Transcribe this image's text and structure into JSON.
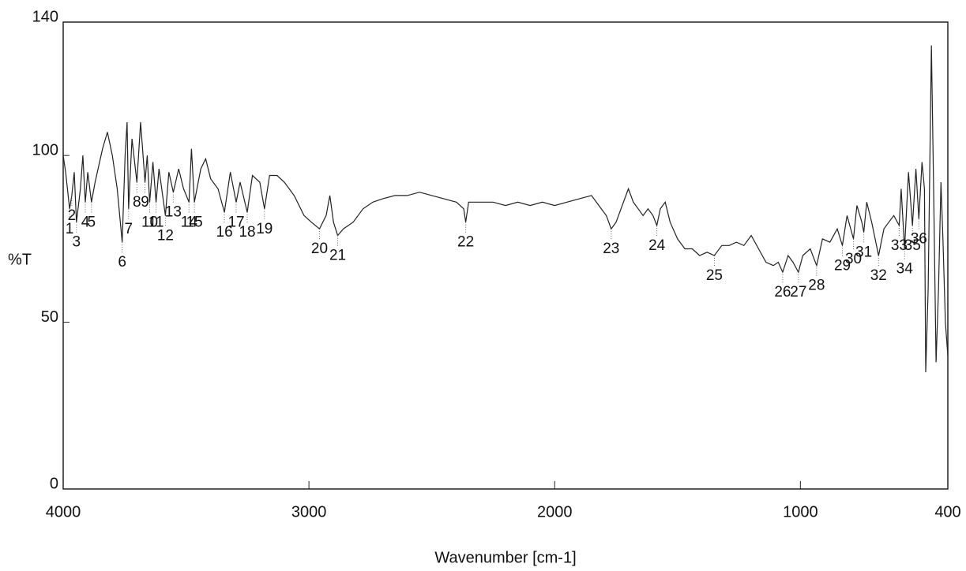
{
  "chart_data": {
    "type": "line",
    "xlabel": "Wavenumber [cm-1]",
    "ylabel": "%T",
    "color": "#222",
    "xlim": [
      4000,
      400
    ],
    "ylim": [
      0,
      140
    ],
    "xticks": [
      4000,
      3000,
      2000,
      1000,
      400
    ],
    "yticks": [
      0,
      50,
      100,
      140
    ],
    "x": [
      4000,
      3990,
      3974,
      3965,
      3955,
      3946,
      3930,
      3920,
      3910,
      3900,
      3885,
      3870,
      3840,
      3820,
      3800,
      3780,
      3760,
      3748,
      3740,
      3734,
      3720,
      3700,
      3685,
      3667,
      3658,
      3648,
      3635,
      3622,
      3610,
      3584,
      3570,
      3552,
      3530,
      3510,
      3488,
      3478,
      3466,
      3440,
      3420,
      3400,
      3370,
      3344,
      3320,
      3296,
      3280,
      3251,
      3230,
      3200,
      3181,
      3160,
      3130,
      3100,
      3060,
      3020,
      2990,
      2957,
      2930,
      2915,
      2900,
      2883,
      2860,
      2820,
      2780,
      2740,
      2700,
      2650,
      2600,
      2550,
      2500,
      2450,
      2400,
      2370,
      2362,
      2350,
      2300,
      2250,
      2200,
      2150,
      2100,
      2050,
      2000,
      1950,
      1900,
      1850,
      1820,
      1790,
      1770,
      1750,
      1720,
      1700,
      1680,
      1660,
      1640,
      1620,
      1600,
      1584,
      1570,
      1550,
      1530,
      1500,
      1470,
      1440,
      1410,
      1380,
      1350,
      1320,
      1290,
      1260,
      1230,
      1200,
      1170,
      1140,
      1110,
      1090,
      1072,
      1050,
      1030,
      1008,
      990,
      960,
      934,
      910,
      880,
      850,
      829,
      810,
      784,
      770,
      750,
      742,
      730,
      710,
      682,
      660,
      640,
      620,
      598,
      590,
      576,
      560,
      544,
      530,
      518,
      505,
      495,
      490,
      480,
      467,
      458,
      448,
      438,
      428,
      420,
      410,
      400
    ],
    "values": [
      100,
      95,
      84,
      88,
      95,
      80,
      90,
      100,
      86,
      95,
      86,
      92,
      102,
      107,
      100,
      90,
      74,
      100,
      110,
      84,
      105,
      92,
      110,
      92,
      100,
      86,
      98,
      86,
      96,
      82,
      95,
      89,
      96,
      90,
      86,
      102,
      86,
      96,
      99,
      93,
      90,
      83,
      95,
      86,
      92,
      83,
      94,
      92,
      84,
      94,
      94,
      92,
      88,
      82,
      80,
      78,
      82,
      88,
      80,
      76,
      78,
      80,
      84,
      86,
      87,
      88,
      88,
      89,
      88,
      87,
      86,
      84,
      80,
      86,
      86,
      86,
      85,
      86,
      85,
      86,
      85,
      86,
      87,
      88,
      85,
      82,
      78,
      80,
      86,
      90,
      86,
      84,
      82,
      84,
      82,
      79,
      84,
      86,
      80,
      75,
      72,
      72,
      70,
      71,
      70,
      73,
      73,
      74,
      73,
      76,
      72,
      68,
      67,
      68,
      65,
      70,
      68,
      65,
      70,
      72,
      67,
      75,
      74,
      78,
      73,
      82,
      75,
      85,
      80,
      77,
      86,
      80,
      70,
      78,
      80,
      82,
      79,
      90,
      72,
      95,
      79,
      96,
      81,
      98,
      90,
      35,
      60,
      133,
      90,
      38,
      60,
      92,
      75,
      50,
      40
    ],
    "peaks": [
      {
        "label": "1",
        "x": 3974,
        "y": 84
      },
      {
        "label": "2",
        "x": 3965,
        "y": 88
      },
      {
        "label": "3",
        "x": 3946,
        "y": 80
      },
      {
        "label": "4",
        "x": 3910,
        "y": 86
      },
      {
        "label": "5",
        "x": 3885,
        "y": 86
      },
      {
        "label": "6",
        "x": 3760,
        "y": 74
      },
      {
        "label": "7",
        "x": 3734,
        "y": 84
      },
      {
        "label": "8",
        "x": 3700,
        "y": 92
      },
      {
        "label": "9",
        "x": 3667,
        "y": 92
      },
      {
        "label": "10",
        "x": 3648,
        "y": 86
      },
      {
        "label": "11",
        "x": 3622,
        "y": 86
      },
      {
        "label": "12",
        "x": 3584,
        "y": 82
      },
      {
        "label": "13",
        "x": 3552,
        "y": 89
      },
      {
        "label": "14",
        "x": 3488,
        "y": 86
      },
      {
        "label": "15",
        "x": 3466,
        "y": 86
      },
      {
        "label": "16",
        "x": 3344,
        "y": 83
      },
      {
        "label": "17",
        "x": 3296,
        "y": 86
      },
      {
        "label": "18",
        "x": 3251,
        "y": 83
      },
      {
        "label": "19",
        "x": 3181,
        "y": 84
      },
      {
        "label": "20",
        "x": 2957,
        "y": 78
      },
      {
        "label": "21",
        "x": 2883,
        "y": 76
      },
      {
        "label": "22",
        "x": 2362,
        "y": 80
      },
      {
        "label": "23",
        "x": 1770,
        "y": 78
      },
      {
        "label": "24",
        "x": 1584,
        "y": 79
      },
      {
        "label": "25",
        "x": 1350,
        "y": 70
      },
      {
        "label": "26",
        "x": 1072,
        "y": 65
      },
      {
        "label": "27",
        "x": 1008,
        "y": 65
      },
      {
        "label": "28",
        "x": 934,
        "y": 67
      },
      {
        "label": "29",
        "x": 829,
        "y": 73
      },
      {
        "label": "30",
        "x": 784,
        "y": 75
      },
      {
        "label": "31",
        "x": 742,
        "y": 77
      },
      {
        "label": "32",
        "x": 682,
        "y": 70
      },
      {
        "label": "33",
        "x": 598,
        "y": 79
      },
      {
        "label": "34",
        "x": 576,
        "y": 72
      },
      {
        "label": "35",
        "x": 544,
        "y": 79
      },
      {
        "label": "36",
        "x": 518,
        "y": 81
      }
    ]
  }
}
